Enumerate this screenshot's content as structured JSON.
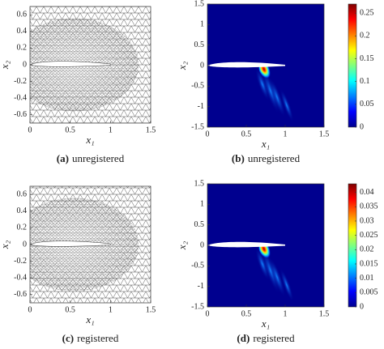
{
  "panels": [
    {
      "caption": {
        "tag": "(a)",
        "text": "unregistered"
      },
      "x_label": "x₁",
      "y_label": "x₂",
      "xlim": [
        0,
        1.5
      ],
      "xticks": [
        0,
        0.5,
        1,
        1.5
      ],
      "ylim": [
        -0.7,
        0.7
      ],
      "yticks": [
        0.6,
        0.4,
        0.2,
        0,
        -0.2,
        -0.4,
        -0.6
      ],
      "kind": "mesh"
    },
    {
      "caption": {
        "tag": "(b)",
        "text": "unregistered"
      },
      "x_label": "x₁",
      "y_label": "x₂",
      "xlim": [
        0,
        1.5
      ],
      "xticks": [
        0,
        0.5,
        1,
        1.5
      ],
      "ylim": [
        -1.5,
        1.5
      ],
      "yticks": [
        1.5,
        1,
        0.5,
        0,
        -0.5,
        -1,
        -1.5
      ],
      "kind": "field",
      "clim": [
        0,
        0.27
      ],
      "cticks": [
        0,
        0.05,
        0.1,
        0.15,
        0.2,
        0.25
      ]
    },
    {
      "caption": {
        "tag": "(c)",
        "text": "registered"
      },
      "x_label": "x₁",
      "y_label": "x₂",
      "xlim": [
        0,
        1.5
      ],
      "xticks": [
        0,
        0.5,
        1,
        1.5
      ],
      "ylim": [
        -0.7,
        0.7
      ],
      "yticks": [
        0.6,
        0.4,
        0.2,
        0,
        -0.2,
        -0.4,
        -0.6
      ],
      "kind": "mesh"
    },
    {
      "caption": {
        "tag": "(d)",
        "text": "registered"
      },
      "x_label": "x₁",
      "y_label": "x₂",
      "xlim": [
        0,
        1.5
      ],
      "xticks": [
        0,
        0.5,
        1,
        1.5
      ],
      "ylim": [
        -1.5,
        1.5
      ],
      "yticks": [
        1.5,
        1,
        0.5,
        0,
        -0.5,
        -1,
        -1.5
      ],
      "kind": "field",
      "clim": [
        0,
        0.043
      ],
      "cticks": [
        0,
        0.005,
        0.01,
        0.015,
        0.02,
        0.025,
        0.03,
        0.035,
        0.04
      ]
    }
  ]
}
